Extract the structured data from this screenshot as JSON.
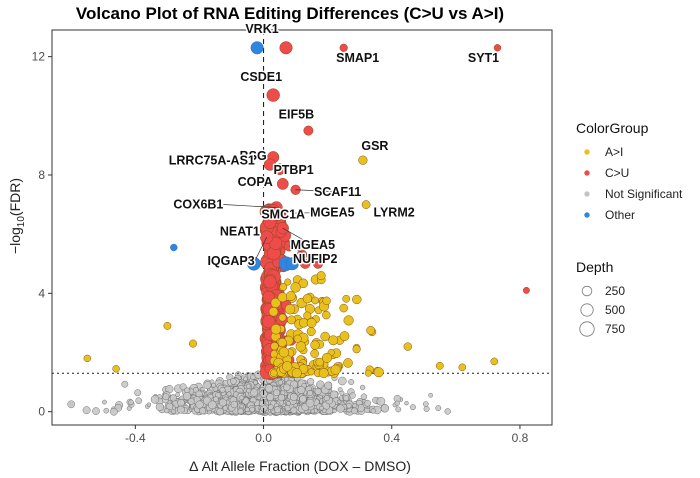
{
  "chart_data": {
    "type": "scatter",
    "title": "Volcano Plot of RNA Editing Differences (C>U vs A>I)",
    "xlabel": "Δ Alt Allele Fraction (DOX – DMSO)",
    "ylabel_prefix": "−log",
    "ylabel_sub": "10",
    "ylabel_suffix": "(FDR)",
    "xlim": [
      -0.66,
      0.9
    ],
    "ylim": [
      -0.45,
      12.9
    ],
    "xticks": [
      -0.4,
      0.0,
      0.4,
      0.8
    ],
    "xtick_labels": [
      "-0.4",
      "0.0",
      "0.4",
      "0.8"
    ],
    "yticks": [
      0,
      4,
      8,
      12
    ],
    "ytick_labels": [
      "0",
      "4",
      "8",
      "12"
    ],
    "grid": false,
    "vline_x": 0,
    "hline_y": 1.3,
    "legend": {
      "position": "right",
      "color_title": "ColorGroup",
      "color_items": [
        {
          "label": "A>I",
          "color": "#e8c21c"
        },
        {
          "label": "C>U",
          "color": "#ee4b4b"
        },
        {
          "label": "Not Significant",
          "color": "#c4c4c4"
        },
        {
          "label": "Other",
          "color": "#2f86e0"
        }
      ],
      "size_title": "Depth",
      "size_items": [
        {
          "label": "250",
          "depth": 250
        },
        {
          "label": "500",
          "depth": 500
        },
        {
          "label": "750",
          "depth": 750
        }
      ]
    },
    "labeled_points": [
      {
        "label": "VRK1",
        "x": 0.07,
        "y": 12.3,
        "group": "C>U",
        "depth": 520
      },
      {
        "label": "SMAP1",
        "x": 0.25,
        "y": 12.3,
        "group": "C>U",
        "depth": 120
      },
      {
        "label": "SYT1",
        "x": 0.73,
        "y": 12.3,
        "group": "C>U",
        "depth": 80
      },
      {
        "label": "CSDE1",
        "x": 0.03,
        "y": 10.7,
        "group": "C>U",
        "depth": 560
      },
      {
        "label": "EIF5B",
        "x": 0.14,
        "y": 9.5,
        "group": "C>U",
        "depth": 230
      },
      {
        "label": "GSR",
        "x": 0.31,
        "y": 8.5,
        "group": "A>I",
        "depth": 180
      },
      {
        "label": "BSG",
        "x": 0.03,
        "y": 8.6,
        "group": "C>U",
        "depth": 420
      },
      {
        "label": "LRRC75A-AS1",
        "x": 0.02,
        "y": 8.35,
        "group": "C>U",
        "depth": 430
      },
      {
        "label": "PTBP1",
        "x": 0.05,
        "y": 8.2,
        "group": "C>U",
        "depth": 400
      },
      {
        "label": "COPA",
        "x": 0.06,
        "y": 7.7,
        "group": "C>U",
        "depth": 380
      },
      {
        "label": "SCAF11",
        "x": 0.1,
        "y": 7.5,
        "group": "C>U",
        "depth": 250
      },
      {
        "label": "LYRM2",
        "x": 0.32,
        "y": 7.0,
        "group": "A>I",
        "depth": 150
      },
      {
        "label": "COX6B1",
        "x": 0.04,
        "y": 6.9,
        "group": "C>U",
        "depth": 460
      },
      {
        "label": "SMC1A",
        "x": 0.03,
        "y": 6.8,
        "group": "C>U",
        "depth": 480
      },
      {
        "label": "MGEA5",
        "x": 0.04,
        "y": 6.7,
        "group": "C>U",
        "depth": 470
      },
      {
        "label": "NEAT1",
        "x": 0.02,
        "y": 6.4,
        "group": "C>U",
        "depth": 520
      },
      {
        "label": "MGEA5",
        "x": 0.06,
        "y": 6.2,
        "group": "C>U",
        "depth": 430
      },
      {
        "label": "IQGAP3",
        "x": 0.01,
        "y": 5.9,
        "group": "C>U",
        "depth": 560
      },
      {
        "label": "NUFIP2",
        "x": 0.08,
        "y": 5.6,
        "group": "C>U",
        "depth": 300
      }
    ],
    "other_points": [
      {
        "x": -0.02,
        "y": 12.3,
        "depth": 520
      },
      {
        "x": -0.03,
        "y": 5.0,
        "depth": 600
      },
      {
        "x": 0.07,
        "y": 5.0,
        "depth": 720
      },
      {
        "x": 0.09,
        "y": 5.0,
        "depth": 520
      },
      {
        "x": -0.28,
        "y": 5.55,
        "depth": 80
      }
    ],
    "extra_points": [
      {
        "x": 0.82,
        "y": 4.1,
        "group": "C>U",
        "depth": 60
      },
      {
        "x": 0.13,
        "y": 5.0,
        "group": "C>U",
        "depth": 260
      },
      {
        "x": 0.17,
        "y": 5.0,
        "group": "C>U",
        "depth": 240
      },
      {
        "x": 0.12,
        "y": 5.3,
        "group": "C>U",
        "depth": 280
      },
      {
        "x": 0.1,
        "y": 4.2,
        "group": "A>I",
        "depth": 260
      },
      {
        "x": 0.18,
        "y": 4.6,
        "group": "A>I",
        "depth": 160
      },
      {
        "x": 0.25,
        "y": 3.5,
        "group": "A>I",
        "depth": 140
      },
      {
        "x": 0.15,
        "y": 3.0,
        "group": "A>I",
        "depth": 220
      },
      {
        "x": -0.3,
        "y": 2.9,
        "group": "A>I",
        "depth": 100
      },
      {
        "x": -0.22,
        "y": 2.3,
        "group": "A>I",
        "depth": 110
      },
      {
        "x": -0.55,
        "y": 1.8,
        "group": "A>I",
        "depth": 80
      },
      {
        "x": -0.46,
        "y": 1.45,
        "group": "A>I",
        "depth": 80
      },
      {
        "x": 0.72,
        "y": 1.7,
        "group": "A>I",
        "depth": 90
      },
      {
        "x": 0.62,
        "y": 1.5,
        "group": "A>I",
        "depth": 90
      },
      {
        "x": 0.45,
        "y": 2.2,
        "group": "A>I",
        "depth": 130
      },
      {
        "x": 0.55,
        "y": 1.55,
        "group": "A>I",
        "depth": 100
      }
    ]
  }
}
